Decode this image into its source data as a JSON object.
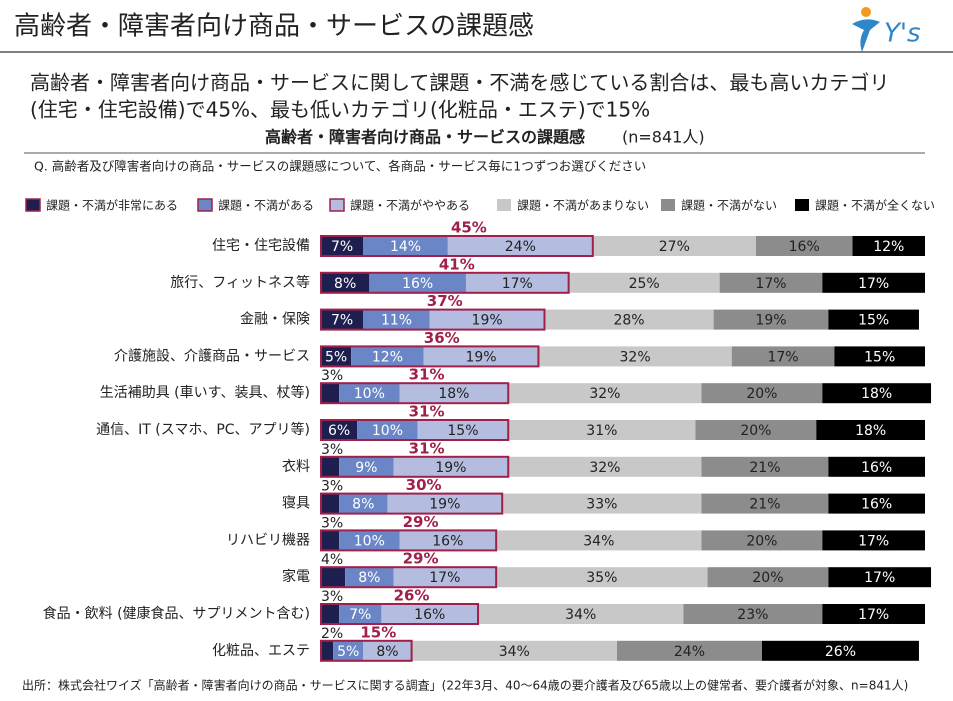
{
  "header": {
    "title": "高齢者・障害者向け商品・サービスの課題感",
    "logo": "Y's"
  },
  "subtitle": [
    "高齢者・障害者向け商品・サービスに関して課題・不満を感じている割合は、最も高いカテゴリ",
    "(住宅・住宅設備)で45%、最も低いカテゴリ(化粧品・エステ)で15%"
  ],
  "source": "出所：株式会社ワイズ「高齢者・障害者向けの商品・サービスに関する調査」(22年3月、40～64歳の要介護者及び65歳以上の健常者、要介護者が対象、n=841人)",
  "chart_data": {
    "type": "bar",
    "orientation": "horizontal",
    "stacked": true,
    "title": "高齢者・障害者向け商品・サービスの課題感",
    "sample": "(n=841人)",
    "question": "Q. 高齢者及び障害者向けの商品・サービスの課題感について、各商品・サービス毎に1つずつお選びください",
    "xlim": [
      0,
      100
    ],
    "categories": [
      "住宅・住宅設備",
      "旅行、フィットネス等",
      "金融・保険",
      "介護施設、介護商品・サービス",
      "生活補助具 (車いす、装具、杖等)",
      "通信、IT (スマホ、PC、アプリ等)",
      "衣料",
      "寝具",
      "リハビリ機器",
      "家電",
      "食品・飲料 (健康食品、サプリメント含む)",
      "化粧品、エステ"
    ],
    "series": [
      {
        "name": "課題・不満が非常にある",
        "color": "#1f1f4f",
        "values": [
          7,
          8,
          7,
          5,
          3,
          6,
          3,
          3,
          3,
          4,
          3,
          2
        ],
        "value_labels": [
          "7%",
          "8%",
          "7%",
          "5%",
          "3%",
          "6%",
          "3%",
          "3%",
          "3%",
          "4%",
          "3%",
          "2%"
        ]
      },
      {
        "name": "課題・不満がある",
        "color": "#6b86c6",
        "values": [
          14,
          16,
          11,
          12,
          10,
          10,
          9,
          8,
          10,
          8,
          7,
          5
        ],
        "value_labels": [
          "14%",
          "16%",
          "11%",
          "12%",
          "10%",
          "10%",
          "9%",
          "8%",
          "10%",
          "8%",
          "7%",
          "5%"
        ]
      },
      {
        "name": "課題・不満がややある",
        "color": "#b4bde0",
        "values": [
          24,
          17,
          19,
          19,
          18,
          15,
          19,
          19,
          16,
          17,
          16,
          8
        ],
        "value_labels": [
          "24%",
          "17%",
          "19%",
          "19%",
          "18%",
          "15%",
          "19%",
          "19%",
          "16%",
          "17%",
          "16%",
          "8%"
        ]
      },
      {
        "name": "課題・不満があまりない",
        "color": "#c8c8c8",
        "values": [
          27,
          25,
          28,
          32,
          32,
          31,
          32,
          33,
          34,
          35,
          34,
          34
        ],
        "value_labels": [
          "27%",
          "25%",
          "28%",
          "32%",
          "32%",
          "31%",
          "32%",
          "33%",
          "34%",
          "35%",
          "34%",
          "34%"
        ]
      },
      {
        "name": "課題・不満がない",
        "color": "#8c8c8c",
        "values": [
          16,
          17,
          19,
          17,
          20,
          20,
          21,
          21,
          20,
          20,
          23,
          24
        ],
        "value_labels": [
          "16%",
          "17%",
          "19%",
          "17%",
          "20%",
          "20%",
          "21%",
          "21%",
          "20%",
          "20%",
          "23%",
          "24%"
        ]
      },
      {
        "name": "課題・不満が全くない",
        "color": "#000000",
        "values": [
          12,
          17,
          15,
          15,
          18,
          18,
          16,
          16,
          17,
          17,
          17,
          26
        ],
        "value_labels": [
          "12%",
          "17%",
          "15%",
          "15%",
          "18%",
          "18%",
          "16%",
          "16%",
          "17%",
          "17%",
          "17%",
          "26%"
        ]
      }
    ],
    "totals": {
      "color": "#a0204a",
      "values": [
        45,
        41,
        37,
        36,
        31,
        31,
        31,
        30,
        29,
        29,
        26,
        15
      ],
      "value_labels": [
        "45%",
        "41%",
        "37%",
        "36%",
        "31%",
        "31%",
        "31%",
        "30%",
        "29%",
        "29%",
        "26%",
        "15%"
      ]
    }
  }
}
